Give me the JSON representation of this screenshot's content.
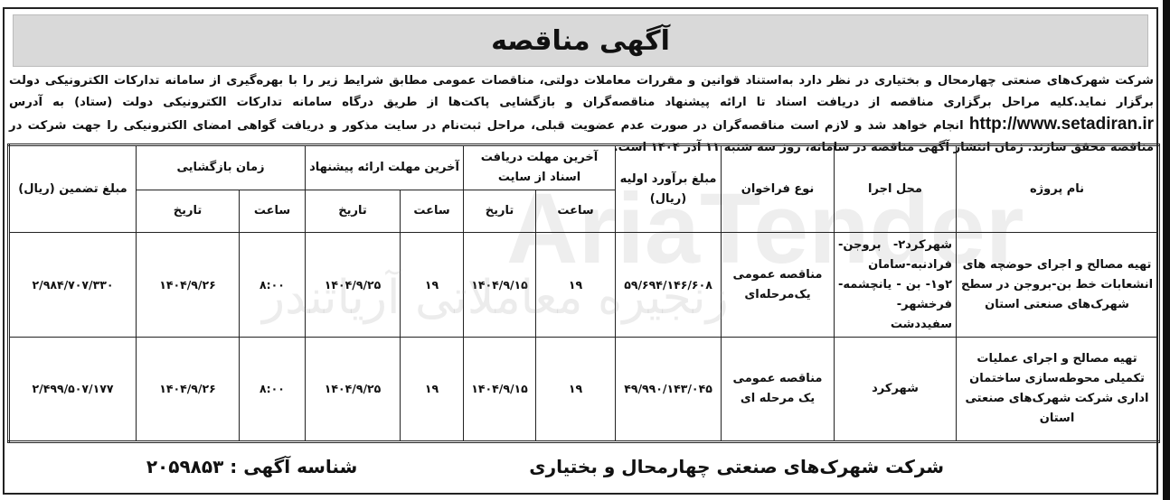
{
  "title": "آگهی مناقصه",
  "intro": {
    "text_before_url": "شرکت شهرک‌های صنعتی چهارمحال و بختیاری در نظر دارد به‌استناد قوانین و مقررات معاملات دولتی، مناقصات عمومی مطابق شرایط زیر را با بهره‌گیری از سامانه تدارکات الکترونیکی دولت برگزار نماید.کلیه مراحل برگزاری مناقصه از دریافت اسناد تا ارائه پیشنهاد مناقصه‌گران و بازگشایی پاکت‌ها از طریق درگاه سامانه تدارکات الکترونیکی دولت (ستاد) به آدرس",
    "url": "http://www.setadiran.ir",
    "text_after_url": "انجام خواهد شد و لازم است مناقصه‌گران در صورت عدم عضویت قبلی، مراحل ثبت‌نام در سایت مذکور و دریافت گواهی امضای الکترونیکی را جهت شرکت در مناقصه محقق سازند. زمان انتشار آگهی مناقصه در سامانه، روز سه شنبه ۱۱ آذر ۱۴۰۴ است."
  },
  "table": {
    "headers": {
      "project": "نام پروژه",
      "location": "محل اجرا",
      "type": "نوع فراخوان",
      "estimate": "مبلغ برآورد اولیه (ریال)",
      "doc_deadline": "آخرین مهلت دریافت اسناد از سایت",
      "offer_deadline": "آخرین مهلت  ارائه پیشنهاد",
      "opening": "زمان بازگشایی",
      "guarantee": "مبلغ تضمین (ریال)",
      "time": "ساعت",
      "date": "تاریخ"
    },
    "rows": [
      {
        "project": "تهیه مصالح و اجرای حوضچه های انشعابات خط بن-بروجن در سطح شهرک‌های صنعتی استان",
        "location": "شهرکرد۲- بروجن- فرادنبه-سامان ۲و۱- بن - یانچشمه- فرخشهر-سفیددشت",
        "type": "مناقصه عمومی یک‌مرحله‌ای",
        "estimate": "۵۹/۶۹۴/۱۴۶/۶۰۸",
        "doc_time": "۱۹",
        "doc_date": "۱۴۰۴/۹/۱۵",
        "offer_time": "۱۹",
        "offer_date": "۱۴۰۴/۹/۲۵",
        "open_time": "۸:۰۰",
        "open_date": "۱۴۰۴/۹/۲۶",
        "guarantee": "۲/۹۸۴/۷۰۷/۳۳۰"
      },
      {
        "project": "تهیه مصالح و اجرای عملیات تکمیلی محوطه‌سازی ساختمان اداری شرکت شهرک‌های صنعتی استان",
        "location": "شهرکرد",
        "type": "مناقصه عمومی یک مرحله ای",
        "estimate": "۴۹/۹۹۰/۱۴۳/۰۴۵",
        "doc_time": "۱۹",
        "doc_date": "۱۴۰۴/۹/۱۵",
        "offer_time": "۱۹",
        "offer_date": "۱۴۰۴/۹/۲۵",
        "open_time": "۸:۰۰",
        "open_date": "۱۴۰۴/۹/۲۶",
        "guarantee": "۲/۴۹۹/۵۰۷/۱۷۷"
      }
    ]
  },
  "footer": {
    "company": "شرکت شهرک‌های صنعتی چهارمحال و بختیاری",
    "notice_id": "شناسه آگهی :  ۲۰۵۹۸۵۳"
  },
  "watermark": {
    "logo_text": "AriaTender",
    "text": "زنجیره معاملاتی آریاتندر"
  }
}
